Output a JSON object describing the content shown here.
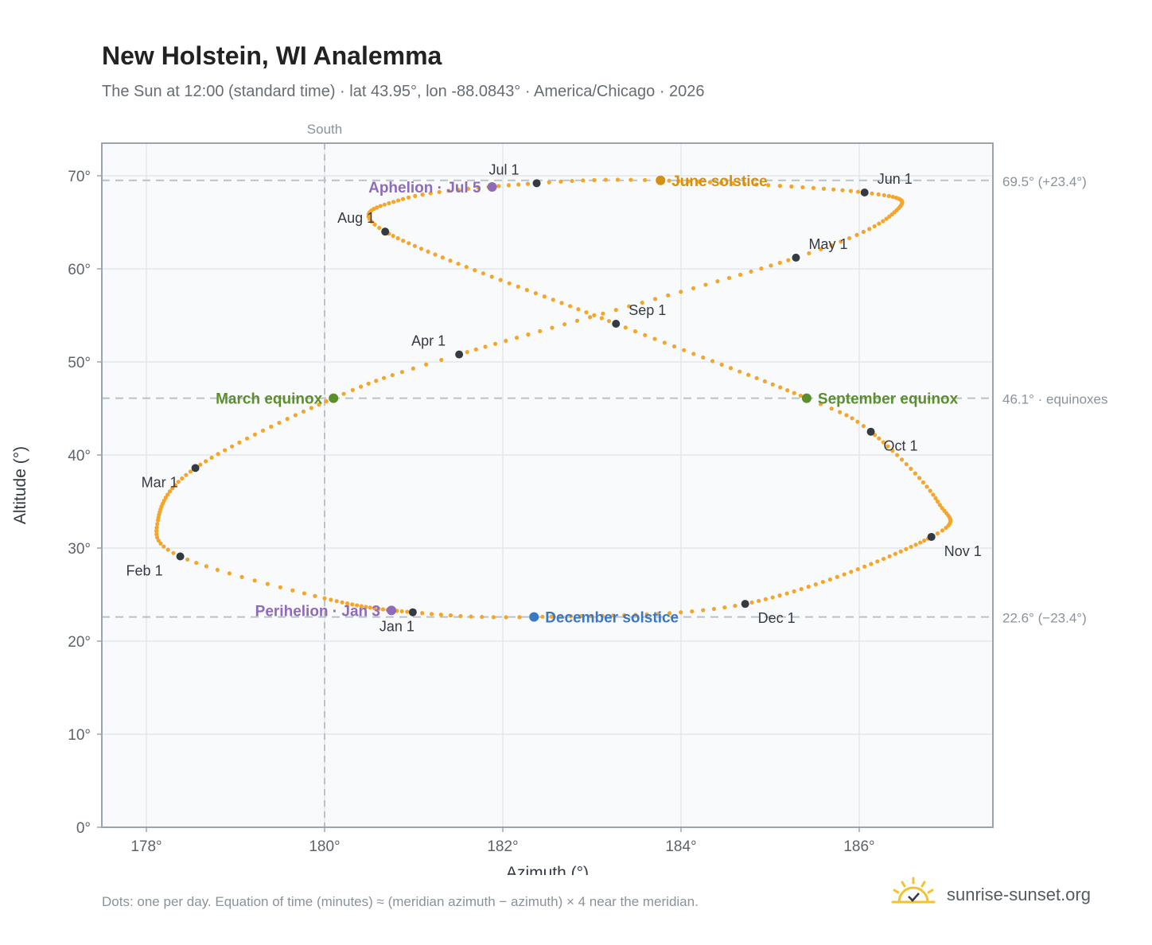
{
  "title": "New Holstein, WI Analemma",
  "subtitle": "The Sun at 12:00 (standard time) · lat 43.95°, lon -88.0843° · America/Chicago · 2026",
  "footnote": "Dots: one per day. Equation of time (minutes) ≈ (meridian azimuth − azimuth) × 4 near the meridian.",
  "brand": "sunrise-sunset.org",
  "colors": {
    "path": "#f4a52a",
    "month": "#333a42",
    "june": "#d4900e",
    "december": "#3a78c2",
    "equinox": "#5b8f2e",
    "apsis": "#8e6bb8",
    "plot_bg": "#f9fafc",
    "grid": "#e3e7ec",
    "frame": "#9aa4b0",
    "ref": "#b9c2cb"
  },
  "chart_data": {
    "type": "scatter",
    "xlabel": "Azimuth (°)",
    "ylabel": "Altitude (°)",
    "xlim": [
      177.5,
      187.5
    ],
    "ylim": [
      0,
      73.5
    ],
    "xticks": [
      178,
      180,
      182,
      184,
      186
    ],
    "yticks": [
      0,
      10,
      20,
      30,
      40,
      50,
      60,
      70
    ],
    "tick_suffix": "°",
    "meridian": {
      "x": 180.0,
      "label": "South"
    },
    "reference_lines": [
      {
        "y": 69.5,
        "label": "69.5° (+23.4°)"
      },
      {
        "y": 46.1,
        "label": "46.1° · equinoxes"
      },
      {
        "y": 22.6,
        "label": "22.6° (−23.4°)"
      }
    ],
    "path_knots": [
      {
        "day": 0,
        "x": 180.99,
        "y": 23.1
      },
      {
        "day": 18,
        "x": 180.0,
        "y": 24.6
      },
      {
        "day": 31,
        "x": 178.38,
        "y": 29.1
      },
      {
        "day": 42,
        "x": 178.13,
        "y": 33.0
      },
      {
        "day": 59,
        "x": 178.55,
        "y": 38.6
      },
      {
        "day": 78,
        "x": 180.1,
        "y": 46.1
      },
      {
        "day": 90,
        "x": 181.51,
        "y": 50.8
      },
      {
        "day": 120,
        "x": 185.29,
        "y": 61.2
      },
      {
        "day": 136,
        "x": 186.42,
        "y": 66.3
      },
      {
        "day": 151,
        "x": 186.06,
        "y": 68.2
      },
      {
        "day": 171,
        "x": 183.77,
        "y": 69.5
      },
      {
        "day": 181,
        "x": 182.38,
        "y": 69.2
      },
      {
        "day": 196,
        "x": 180.88,
        "y": 67.5
      },
      {
        "day": 212,
        "x": 180.68,
        "y": 64.0
      },
      {
        "day": 243,
        "x": 183.27,
        "y": 54.1
      },
      {
        "day": 265,
        "x": 185.41,
        "y": 46.1
      },
      {
        "day": 273,
        "x": 186.13,
        "y": 42.5
      },
      {
        "day": 290,
        "x": 186.88,
        "y": 35.0
      },
      {
        "day": 304,
        "x": 186.81,
        "y": 31.2
      },
      {
        "day": 334,
        "x": 184.72,
        "y": 24.0
      },
      {
        "day": 354,
        "x": 182.35,
        "y": 22.6
      },
      {
        "day": 365,
        "x": 180.99,
        "y": 23.1
      }
    ],
    "months": [
      {
        "label": "Jan 1",
        "x": 180.99,
        "y": 23.1,
        "pos": "below"
      },
      {
        "label": "Feb 1",
        "x": 178.38,
        "y": 29.1,
        "pos": "below-left"
      },
      {
        "label": "Mar 1",
        "x": 178.55,
        "y": 38.6,
        "pos": "below-left"
      },
      {
        "label": "Apr 1",
        "x": 181.51,
        "y": 50.8,
        "pos": "above-left"
      },
      {
        "label": "May 1",
        "x": 185.29,
        "y": 61.2,
        "pos": "above-right"
      },
      {
        "label": "Jun 1",
        "x": 186.06,
        "y": 68.2,
        "pos": "above-right"
      },
      {
        "label": "Jul 1",
        "x": 182.38,
        "y": 69.2,
        "pos": "above-left"
      },
      {
        "label": "Aug 1",
        "x": 180.68,
        "y": 64.0,
        "pos": "above-left"
      },
      {
        "label": "Sep 1",
        "x": 183.27,
        "y": 54.1,
        "pos": "above-right"
      },
      {
        "label": "Oct 1",
        "x": 186.13,
        "y": 42.5,
        "pos": "below-right"
      },
      {
        "label": "Nov 1",
        "x": 186.81,
        "y": 31.2,
        "pos": "below-right"
      },
      {
        "label": "Dec 1",
        "x": 184.72,
        "y": 24.0,
        "pos": "below-right"
      }
    ],
    "events": [
      {
        "label": "June solstice",
        "x": 183.77,
        "y": 69.5,
        "color": "june",
        "side": "right"
      },
      {
        "label": "December solstice",
        "x": 182.35,
        "y": 22.6,
        "color": "december",
        "side": "right"
      },
      {
        "label": "March equinox",
        "x": 180.1,
        "y": 46.1,
        "color": "equinox",
        "side": "left"
      },
      {
        "label": "September equinox",
        "x": 185.41,
        "y": 46.1,
        "color": "equinox",
        "side": "right"
      },
      {
        "label": "Aphelion · Jul 5",
        "x": 181.88,
        "y": 68.8,
        "color": "apsis",
        "side": "left"
      },
      {
        "label": "Perihelion · Jan 3",
        "x": 180.75,
        "y": 23.3,
        "color": "apsis",
        "side": "left"
      }
    ]
  }
}
